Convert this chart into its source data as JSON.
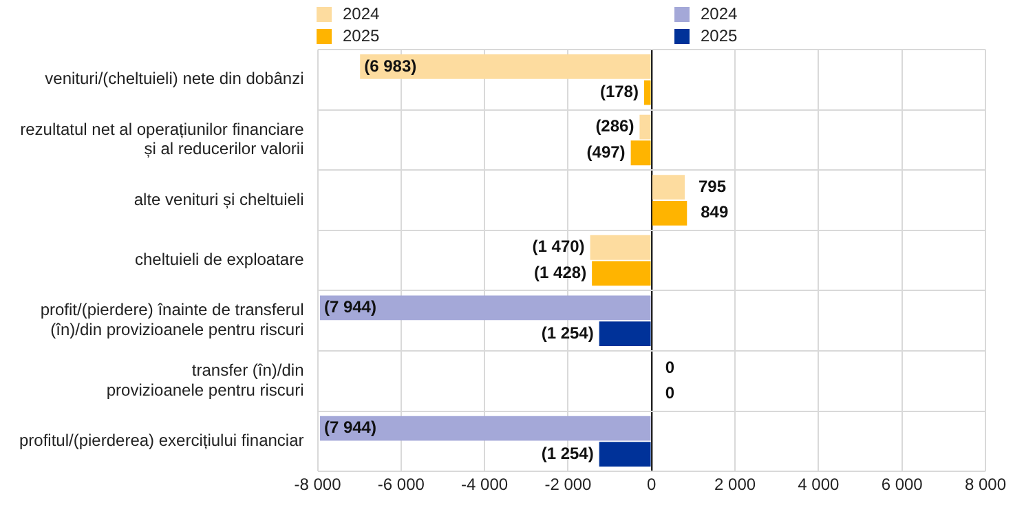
{
  "chart_data": {
    "type": "bar",
    "orientation": "horizontal",
    "categories": [
      "venituri/(cheltuieli) nete din dobânzi",
      "rezultatul net al operațiunilor financiare\nși al reducerilor valorii",
      "alte venituri și cheltuieli",
      "cheltuieli de exploatare",
      "profit/(pierdere) înainte de transferul\n(în)/din provizioanele pentru riscuri",
      "transfer (în)/din\nprovizioanele pentru riscuri",
      "profitul/(pierderea) exercițiului financiar"
    ],
    "series": [
      {
        "name": "2024",
        "color": "#fddc9f",
        "values": [
          -6983,
          -286,
          795,
          -1470,
          null,
          null,
          null
        ],
        "value_labels": [
          "(6 983)",
          "(286)",
          "795",
          "(1 470)",
          null,
          null,
          null
        ]
      },
      {
        "name": "2025",
        "color": "#ffb400",
        "values": [
          -178,
          -497,
          849,
          -1428,
          null,
          null,
          null
        ],
        "value_labels": [
          "(178)",
          "(497)",
          "849",
          "(1 428)",
          null,
          null,
          null
        ]
      },
      {
        "name": "2024",
        "color": "#a4a8d8",
        "values": [
          null,
          null,
          null,
          null,
          -7944,
          0,
          -7944
        ],
        "value_labels": [
          null,
          null,
          null,
          null,
          "(7 944)",
          "0",
          "(7 944)"
        ]
      },
      {
        "name": "2025",
        "color": "#003299",
        "values": [
          null,
          null,
          null,
          null,
          -1254,
          0,
          -1254
        ],
        "value_labels": [
          null,
          null,
          null,
          null,
          "(1 254)",
          "0",
          "(1 254)"
        ]
      }
    ],
    "xlim": [
      -8000,
      8000
    ],
    "xticks": [
      {
        "value": -8000,
        "label": "-8 000"
      },
      {
        "value": -6000,
        "label": "-6 000"
      },
      {
        "value": -4000,
        "label": "-4 000"
      },
      {
        "value": -2000,
        "label": "-2 000"
      },
      0,
      {
        "value": 2000,
        "label": "2 000"
      },
      {
        "value": 4000,
        "label": "4 000"
      },
      {
        "value": 6000,
        "label": "6 000"
      },
      {
        "value": 8000,
        "label": "8 000"
      }
    ],
    "grid": true,
    "legend": "top"
  }
}
